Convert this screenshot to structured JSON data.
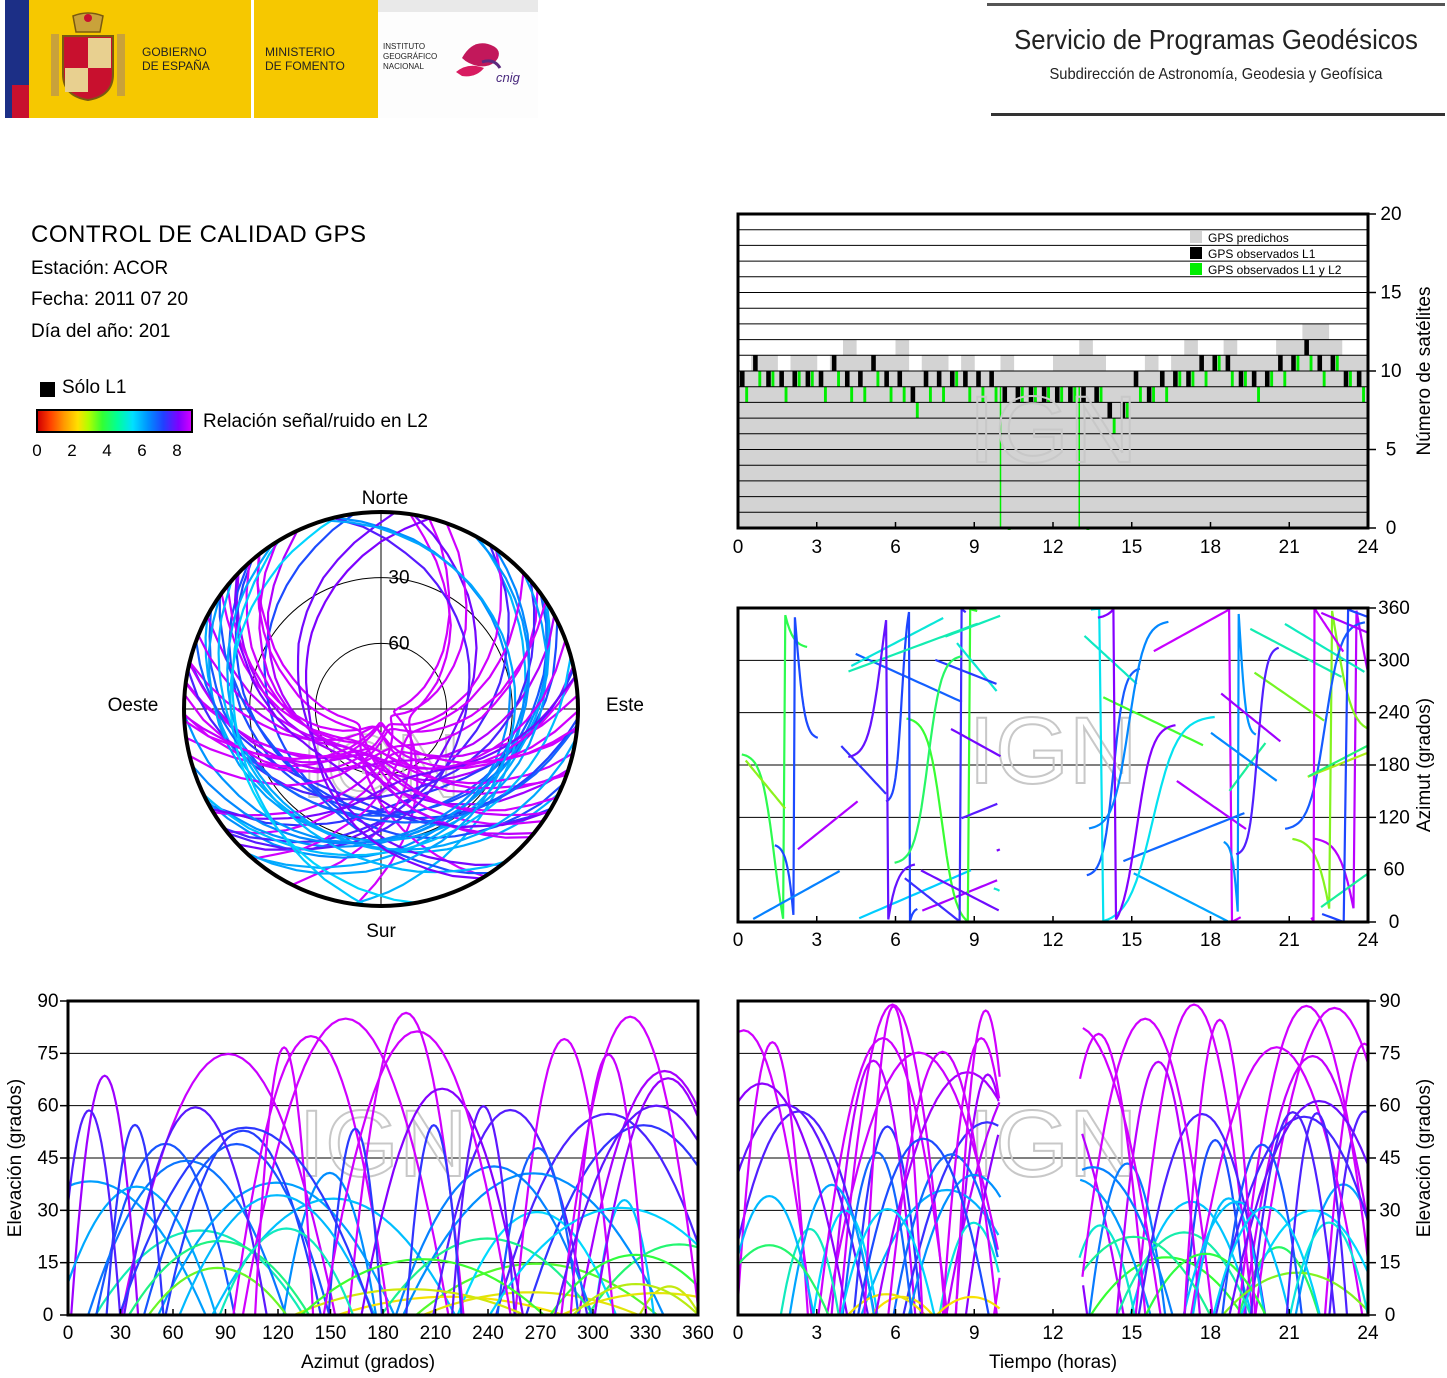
{
  "header": {
    "gov_label": "GOBIERNO\nDE ESPAÑA",
    "ministry_label": "MINISTERIO\nDE FOMENTO",
    "institute_label": "INSTITUTO\nGEOGRÁFICO\nNACIONAL",
    "cnig_label": "cnig",
    "service_title": "Servicio de Programas Geodésicos",
    "service_subtitle": "Subdirección de Astronomía, Geodesia y Geofísica"
  },
  "info": {
    "title": "CONTROL DE CALIDAD GPS",
    "station": "Estación: ACOR",
    "date": "Fecha: 2011 07 20",
    "doy": "Día del año: 201"
  },
  "legend": {
    "l1_only": "Sólo L1",
    "colorbar_label": "Relación señal/ruido en L2",
    "colorbar_ticks": [
      "0",
      "2",
      "4",
      "6",
      "8"
    ],
    "colorbar_colors": [
      "#d00000",
      "#ff9900",
      "#ffe000",
      "#33ff33",
      "#00e0ff",
      "#0090ff",
      "#2040ff",
      "#8000ff",
      "#d000ff"
    ]
  },
  "watermark": "IGN",
  "chart_data": [
    {
      "id": "satellite-count",
      "type": "bar",
      "xlabel": "",
      "ylabel": "Número de satélites",
      "xlim": [
        0,
        24
      ],
      "ylim": [
        0,
        20
      ],
      "xticks": [
        "0",
        "3",
        "6",
        "9",
        "12",
        "15",
        "18",
        "21",
        "24"
      ],
      "yticks": [
        "0",
        "5",
        "10",
        "15",
        "20"
      ],
      "legend": [
        "GPS predichos",
        "GPS observados L1",
        "GPS observados L1 y L2"
      ],
      "series": [
        {
          "name": "GPS predichos",
          "color": "#d3d3d3",
          "x": [
            0,
            0.5,
            1,
            1.5,
            2,
            2.5,
            3,
            3.5,
            4,
            4.5,
            5,
            5.5,
            6,
            6.5,
            7,
            7.5,
            8,
            8.5,
            9,
            9.5,
            10,
            10.5,
            11,
            11.5,
            12,
            12.5,
            13,
            13.5,
            14,
            14.5,
            15,
            15.5,
            16,
            16.5,
            17,
            17.5,
            18,
            18.5,
            19,
            19.5,
            20,
            20.5,
            21,
            21.5,
            22,
            22.5,
            23,
            23.5
          ],
          "values": [
            10,
            11,
            11,
            10,
            11,
            11,
            10,
            11,
            12,
            11,
            11,
            11,
            12,
            10,
            11,
            11,
            10,
            11,
            10,
            10,
            11,
            10,
            10,
            10,
            11,
            11,
            12,
            11,
            10,
            10,
            10,
            11,
            10,
            11,
            12,
            11,
            11,
            12,
            11,
            11,
            11,
            12,
            12,
            13,
            13,
            12,
            11,
            11
          ]
        },
        {
          "name": "GPS observados L1",
          "color": "#000000",
          "x": [
            0,
            0.5,
            1,
            1.5,
            2,
            2.5,
            3,
            3.5,
            4,
            4.5,
            5,
            5.5,
            6,
            6.5,
            7,
            7.5,
            8,
            8.5,
            9,
            9.5,
            10,
            10.5,
            11,
            11.5,
            12,
            12.5,
            13,
            13.5,
            14,
            14.5,
            15,
            15.5,
            16,
            16.5,
            17,
            17.5,
            18,
            18.5,
            19,
            19.5,
            20,
            20.5,
            21,
            21.5,
            22,
            22.5,
            23,
            23.5
          ],
          "values": [
            10,
            11,
            10,
            10,
            10,
            10,
            10,
            11,
            10,
            10,
            11,
            10,
            10,
            9,
            10,
            10,
            10,
            10,
            10,
            10,
            9,
            9,
            9,
            9,
            9,
            9,
            9,
            9,
            8,
            8,
            10,
            9,
            10,
            10,
            10,
            11,
            11,
            11,
            10,
            10,
            10,
            11,
            11,
            12,
            11,
            11,
            10,
            10
          ]
        },
        {
          "name": "GPS observados L1 y L2",
          "color": "#00ee00",
          "x": [
            0,
            0.5,
            1,
            1.5,
            2,
            2.5,
            3,
            3.5,
            4,
            4.5,
            5,
            5.5,
            6,
            6.5,
            7,
            7.5,
            8,
            8.5,
            9,
            9.5,
            10,
            10.5,
            11,
            11.5,
            12,
            12.5,
            13,
            13.5,
            14,
            14.5,
            15,
            15.5,
            16,
            16.5,
            17,
            17.5,
            18,
            18.5,
            19,
            19.5,
            20,
            20.5,
            21,
            21.5,
            22,
            22.5,
            23,
            23.5
          ],
          "values": [
            9,
            10,
            10,
            9,
            10,
            10,
            9,
            10,
            9,
            9,
            10,
            9,
            9,
            8,
            9,
            9,
            10,
            9,
            9,
            9,
            0,
            9,
            9,
            9,
            9,
            9,
            0,
            9,
            7,
            8,
            9,
            9,
            9,
            10,
            10,
            10,
            11,
            10,
            10,
            9,
            10,
            10,
            11,
            11,
            10,
            11,
            10,
            9
          ]
        }
      ]
    },
    {
      "id": "azimuth-vs-time",
      "type": "scatter",
      "ylabel": "Azimut (grados)",
      "xlim": [
        0,
        24
      ],
      "ylim": [
        0,
        360
      ],
      "xticks": [
        "0",
        "3",
        "6",
        "9",
        "12",
        "15",
        "18",
        "21",
        "24"
      ],
      "yticks": [
        "0",
        "60",
        "120",
        "180",
        "240",
        "300",
        "360"
      ]
    },
    {
      "id": "skyplot",
      "type": "scatter",
      "compass": {
        "north": "Norte",
        "south": "Sur",
        "east": "Este",
        "west": "Oeste"
      },
      "elevation_rings": [
        "30",
        "60"
      ]
    },
    {
      "id": "elevation-vs-azimuth",
      "type": "scatter",
      "xlabel": "Azimut (grados)",
      "ylabel": "Elevación (grados)",
      "xlim": [
        0,
        360
      ],
      "ylim": [
        0,
        90
      ],
      "xticks": [
        "0",
        "30",
        "60",
        "90",
        "120",
        "150",
        "180",
        "210",
        "240",
        "270",
        "300",
        "330",
        "360"
      ],
      "yticks": [
        "0",
        "15",
        "30",
        "45",
        "60",
        "75",
        "90"
      ]
    },
    {
      "id": "elevation-vs-time",
      "type": "scatter",
      "xlabel": "Tiempo (horas)",
      "ylabel": "Elevación (grados)",
      "xlim": [
        0,
        24
      ],
      "ylim": [
        0,
        90
      ],
      "xticks": [
        "0",
        "3",
        "6",
        "9",
        "12",
        "15",
        "18",
        "21",
        "24"
      ],
      "yticks": [
        "0",
        "15",
        "30",
        "45",
        "60",
        "75",
        "90"
      ],
      "gap_hours": [
        10,
        13
      ]
    }
  ]
}
